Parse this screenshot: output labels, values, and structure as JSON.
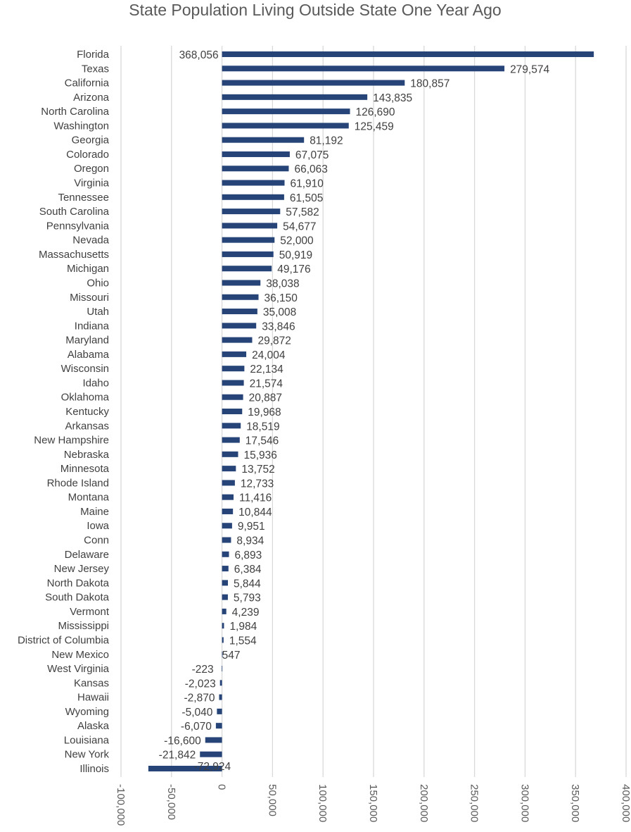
{
  "chart_data": {
    "type": "bar",
    "orientation": "horizontal",
    "title": "State Population Living Outside State One Year Ago",
    "xlabel": "",
    "ylabel": "",
    "xlim": [
      -100000,
      400000
    ],
    "x_ticks": [
      -100000,
      -50000,
      0,
      50000,
      100000,
      150000,
      200000,
      250000,
      300000,
      350000,
      400000
    ],
    "x_tick_labels": [
      "-100,000",
      "-50,000",
      "0",
      "50,000",
      "100,000",
      "150,000",
      "200,000",
      "250,000",
      "300,000",
      "350,000",
      "400,000"
    ],
    "grid": true,
    "bar_color": "#264478",
    "categories": [
      "Florida",
      "Texas",
      "California",
      "Arizona",
      "North Carolina",
      "Washington",
      "Georgia",
      "Colorado",
      "Oregon",
      "Virginia",
      "Tennessee",
      "South Carolina",
      "Pennsylvania",
      "Nevada",
      "Massachusetts",
      "Michigan",
      "Ohio",
      "Missouri",
      "Utah",
      "Indiana",
      "Maryland",
      "Alabama",
      "Wisconsin",
      "Idaho",
      "Oklahoma",
      "Kentucky",
      "Arkansas",
      "New Hampshire",
      "Nebraska",
      "Minnesota",
      "Rhode Island",
      "Montana",
      "Maine",
      "Iowa",
      "Conn",
      "Delaware",
      "New Jersey",
      "North Dakota",
      "South Dakota",
      "Vermont",
      "Mississippi",
      "District of Columbia",
      "New Mexico",
      "West Virginia",
      "Kansas",
      "Hawaii",
      "Wyoming",
      "Alaska",
      "Louisiana",
      "New York",
      "Illinois"
    ],
    "values": [
      368056,
      279574,
      180857,
      143835,
      126690,
      125459,
      81192,
      67075,
      66063,
      61910,
      61505,
      57582,
      54677,
      52000,
      50919,
      49176,
      38038,
      36150,
      35008,
      33846,
      29872,
      24004,
      22134,
      21574,
      20887,
      19968,
      18519,
      17546,
      15936,
      13752,
      12733,
      11416,
      10844,
      9951,
      8934,
      6893,
      6384,
      5844,
      5793,
      4239,
      1984,
      1554,
      547,
      -223,
      -2023,
      -2870,
      -5040,
      -6070,
      -16600,
      -21842,
      -72924
    ],
    "value_labels": [
      "368,056",
      "279,574",
      "180,857",
      "143,835",
      "126,690",
      "125,459",
      "81,192",
      "67,075",
      "66,063",
      "61,910",
      "61,505",
      "57,582",
      "54,677",
      "52,000",
      "50,919",
      "49,176",
      "38,038",
      "36,150",
      "35,008",
      "33,846",
      "29,872",
      "24,004",
      "22,134",
      "21,574",
      "20,887",
      "19,968",
      "18,519",
      "17,546",
      "15,936",
      "13,752",
      "12,733",
      "11,416",
      "10,844",
      "9,951",
      "8,934",
      "6,893",
      "6,384",
      "5,844",
      "5,793",
      "4,239",
      "1,984",
      "1,554",
      "547",
      "-223",
      "-2,023",
      "-2,870",
      "-5,040",
      "-6,070",
      "-16,600",
      "-21,842",
      "-72,924"
    ]
  }
}
